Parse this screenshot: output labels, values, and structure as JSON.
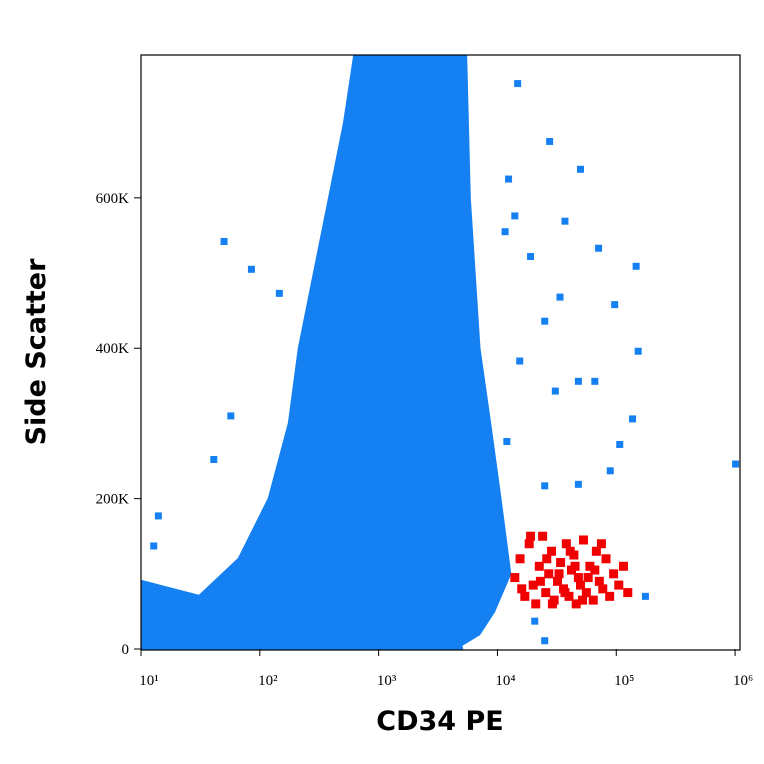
{
  "chart_data": {
    "type": "scatter",
    "xlabel": "CD34 PE",
    "ylabel": "Side Scatter",
    "xscale": "log",
    "xlim": [
      10,
      1100000
    ],
    "ylim": [
      0,
      790000
    ],
    "xticks": [
      {
        "value": 10,
        "label": "10¹"
      },
      {
        "value": 100,
        "label": "10²"
      },
      {
        "value": 1000,
        "label": "10³"
      },
      {
        "value": 10000,
        "label": "10⁴"
      },
      {
        "value": 100000,
        "label": "10⁵"
      },
      {
        "value": 1000000,
        "label": "10⁶"
      }
    ],
    "yticks": [
      0,
      {
        "value": 200000,
        "label": "200K"
      },
      {
        "value": 400000,
        "label": "400K"
      },
      {
        "value": 600000,
        "label": "600K"
      }
    ],
    "areas": [
      {
        "color": "#1480f2",
        "x": [
          10,
          10,
          31,
          67,
          120,
          177,
          215,
          288,
          386,
          516,
          627,
          5400,
          5800,
          7000,
          8600,
          10500,
          12700,
          9300,
          7000,
          4900,
          5000
        ],
        "y": [
          0,
          90000,
          70000,
          120000,
          200000,
          300000,
          400000,
          500000,
          600000,
          700000,
          788000,
          788000,
          600000,
          400000,
          300000,
          200000,
          100000,
          50000,
          20000,
          5000,
          0
        ]
      }
    ],
    "series": [
      {
        "color": "#1480f2",
        "x": [
          50,
          85,
          146,
          41,
          57,
          14,
          12.8,
          14800,
          27500,
          50000,
          37000,
          71000,
          147000,
          97000,
          153000,
          33600,
          48000,
          66000,
          137000,
          107000,
          1010000,
          25000,
          48000,
          89000,
          12400,
          14000,
          19000,
          25000,
          15400,
          12000,
          8300,
          20600,
          25000,
          176000,
          11600,
          30700
        ],
        "y": [
          542000,
          505000,
          473000,
          252000,
          310000,
          177000,
          137000,
          752000,
          675000,
          638000,
          569000,
          533000,
          509000,
          458000,
          396000,
          468000,
          356000,
          356000,
          306000,
          272000,
          246000,
          217000,
          219000,
          237000,
          625000,
          576000,
          522000,
          436000,
          383000,
          276000,
          183000,
          37000,
          11000,
          70000,
          555000,
          343000
        ]
      },
      {
        "color": "#f00000",
        "x": [
          14000,
          15500,
          17000,
          18500,
          20000,
          21000,
          22500,
          24000,
          25500,
          27000,
          28500,
          30000,
          32000,
          34000,
          36000,
          38000,
          40000,
          42000,
          44000,
          46000,
          48000,
          50000,
          53000,
          56000,
          60000,
          64000,
          68000,
          72000,
          77000,
          82000,
          88000,
          95000,
          105000,
          115000,
          125000,
          16000,
          19000,
          23000,
          26000,
          29000,
          33000,
          37000,
          41000,
          45000,
          52000,
          58000,
          66000,
          75000
        ],
        "y": [
          95000,
          120000,
          70000,
          140000,
          85000,
          60000,
          110000,
          150000,
          75000,
          100000,
          130000,
          65000,
          90000,
          115000,
          80000,
          140000,
          70000,
          105000,
          125000,
          60000,
          95000,
          85000,
          145000,
          75000,
          110000,
          65000,
          130000,
          90000,
          80000,
          120000,
          70000,
          100000,
          85000,
          110000,
          75000,
          80000,
          150000,
          90000,
          120000,
          60000,
          100000,
          75000,
          130000,
          110000,
          65000,
          95000,
          105000,
          140000
        ]
      }
    ]
  }
}
